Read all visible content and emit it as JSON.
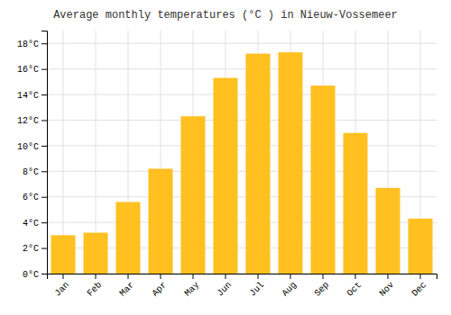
{
  "chart_data": {
    "type": "bar",
    "title": "Average monthly temperatures (°C ) in Nieuw-Vossemeer",
    "categories": [
      "Jan",
      "Feb",
      "Mar",
      "Apr",
      "May",
      "Jun",
      "Jul",
      "Aug",
      "Sep",
      "Oct",
      "Nov",
      "Dec"
    ],
    "values": [
      3.0,
      3.2,
      5.6,
      8.2,
      12.3,
      15.3,
      17.2,
      17.3,
      14.7,
      11.0,
      6.7,
      4.3
    ],
    "color": "#FFC020",
    "ylim": [
      0,
      19
    ],
    "yticks": [
      {
        "value": 0,
        "label": "0°C"
      },
      {
        "value": 2,
        "label": "2°C"
      },
      {
        "value": 4,
        "label": "4°C"
      },
      {
        "value": 6,
        "label": "6°C"
      },
      {
        "value": 8,
        "label": "8°C"
      },
      {
        "value": 10,
        "label": "10°C"
      },
      {
        "value": 12,
        "label": "12°C"
      },
      {
        "value": 14,
        "label": "14°C"
      },
      {
        "value": 16,
        "label": "16°C"
      },
      {
        "value": 18,
        "label": "18°C"
      }
    ],
    "grid": true
  }
}
